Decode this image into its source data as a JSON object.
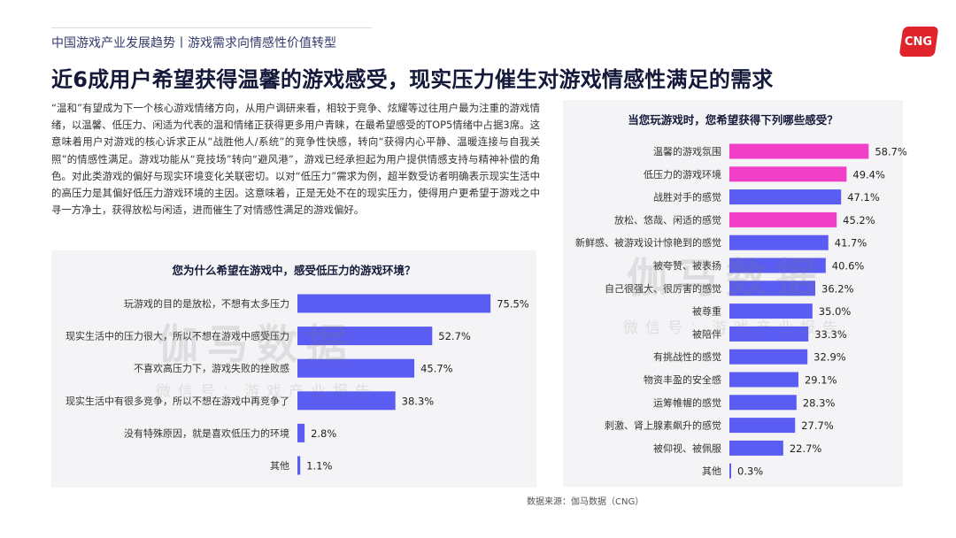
{
  "header": {
    "breadcrumb": "中国游戏产业发展趋势丨游戏需求向情感性价值转型",
    "logo_text": "CNG",
    "title": "近6成用户希望获得温馨的游戏感受，现实压力催生对游戏情感性满足的需求"
  },
  "body_text": "“温和”有望成为下一个核心游戏情绪方向，从用户调研来看，相较于竞争、炫耀等过往用户最为注重的游戏情绪，以温馨、低压力、闲适为代表的温和情绪正获得更多用户青睐，在最希望感受的TOP5情绪中占据3席。这意味着用户对游戏的核心诉求正从“战胜他人/系统”的竞争性快感，转向“获得内心平静、温暖连接与自我关照”的情感性满足。游戏功能从“竞技场”转向“避风港”，游戏已经承担起为用户提供情感支持与精神补偿的角色。对此类游戏的偏好与现实环境变化关联密切。以对“低压力”需求为例，超半数受访者明确表示现实生活中的高压力是其偏好低压力游戏环境的主因。这意味着，正是无处不在的现实压力，使得用户更希望于游戏之中寻一方净土，获得放松与闲适，进而催生了对情感性满足的游戏偏好。",
  "watermark": {
    "main": "伽马数据",
    "sub": "微信号：游戏产业报告"
  },
  "source": "数据来源：伽马数据（CNG）",
  "colors": {
    "primary_bar": "#5a5cf2",
    "highlight_bar": "#f23fc8",
    "title": "#14193a",
    "logo": "#e0242b"
  },
  "chart_data": [
    {
      "type": "bar",
      "orientation": "horizontal",
      "title": "您为什么希望在游戏中，感受低压力的游戏环境？",
      "categories": [
        "玩游戏的目的是放松，不想有太多压力",
        "现实生活中的压力很大，所以不想在游戏中感受压力",
        "不喜欢高压力下，游戏失败的挫败感",
        "现实生活中有很多竞争，所以不想在游戏中再竞争了",
        "没有特殊原因，就是喜欢低压力的环境",
        "其他"
      ],
      "values": [
        75.5,
        52.7,
        45.7,
        38.3,
        2.8,
        1.1
      ],
      "labels": [
        "75.5%",
        "52.7%",
        "45.7%",
        "38.3%",
        "2.8%",
        "1.1%"
      ],
      "highlight_count": 0
    },
    {
      "type": "bar",
      "orientation": "horizontal",
      "title": "当您玩游戏时，您希望获得下列哪些感受？",
      "categories": [
        "温馨的游戏氛围",
        "低压力的游戏环境",
        "战胜对手的感觉",
        "放松、悠哉、闲适的感觉",
        "新鲜感、被游戏设计惊艳到的感觉",
        "被夸赞、被表扬",
        "自己很强大、很厉害的感觉",
        "被尊重",
        "被陪伴",
        "有挑战性的感觉",
        "物资丰盈的安全感",
        "运筹帷幄的感觉",
        "刺激、肾上腺素飙升的感觉",
        "被仰视、被佩服",
        "其他"
      ],
      "values": [
        58.7,
        49.4,
        47.1,
        45.2,
        41.7,
        40.6,
        36.2,
        35.0,
        33.3,
        32.9,
        29.1,
        28.3,
        27.7,
        22.7,
        0.3
      ],
      "labels": [
        "58.7%",
        "49.4%",
        "47.1%",
        "45.2%",
        "41.7%",
        "40.6%",
        "36.2%",
        "35.0%",
        "33.3%",
        "32.9%",
        "29.1%",
        "28.3%",
        "27.7%",
        "22.7%",
        "0.3%"
      ],
      "highlighted": [
        0,
        1,
        3
      ]
    }
  ]
}
